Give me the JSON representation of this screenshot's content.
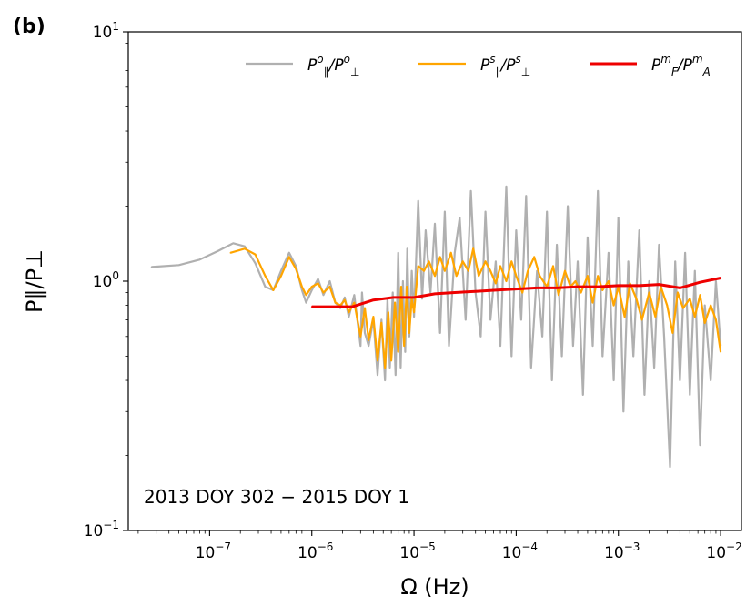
{
  "panel_label": "(b)",
  "chart_data": {
    "type": "line",
    "title": "",
    "xlabel": "Ω (Hz)",
    "ylabel": "P∥/P⊥",
    "x_scale": "log",
    "y_scale": "log",
    "xlim": [
      1.6e-08,
      0.016
    ],
    "ylim": [
      0.1,
      10
    ],
    "x_ticks": [
      {
        "value": 1e-07,
        "base": "10",
        "exp": "−7"
      },
      {
        "value": 1e-06,
        "base": "10",
        "exp": "−6"
      },
      {
        "value": 1e-05,
        "base": "10",
        "exp": "−5"
      },
      {
        "value": 0.0001,
        "base": "10",
        "exp": "−4"
      },
      {
        "value": 0.001,
        "base": "10",
        "exp": "−3"
      },
      {
        "value": 0.01,
        "base": "10",
        "exp": "−2"
      }
    ],
    "y_ticks": [
      {
        "value": 0.1,
        "base": "10",
        "exp": "−1"
      },
      {
        "value": 1,
        "base": "10",
        "exp": "0"
      },
      {
        "value": 10,
        "base": "10",
        "exp": "1"
      }
    ],
    "grid": false,
    "legend_position": "top",
    "annotation": "2013 DOY 302 − 2015 DOY 1",
    "series": [
      {
        "name": "P∥o/P⊥o",
        "legend": {
          "n1": "P",
          "s1": "∥",
          "p1": "o",
          "n2": "P",
          "s2": "⊥",
          "p2": "o"
        },
        "color": "#b0b0b0",
        "x": [
          2.7e-08,
          5e-08,
          8e-08,
          1.2e-07,
          1.7e-07,
          2.2e-07,
          2.8e-07,
          3.5e-07,
          4.2e-07,
          5e-07,
          6e-07,
          7e-07,
          8e-07,
          8.8e-07,
          1e-06,
          1.15e-06,
          1.3e-06,
          1.5e-06,
          1.7e-06,
          1.9e-06,
          2.1e-06,
          2.3e-06,
          2.6e-06,
          3e-06,
          3.1e-06,
          3.3e-06,
          3.6e-06,
          4e-06,
          4.4e-06,
          4.8e-06,
          5.2e-06,
          5.5e-06,
          5.8e-06,
          6.2e-06,
          6.6e-06,
          7e-06,
          7.4e-06,
          7.8e-06,
          8.2e-06,
          8.6e-06,
          9e-06,
          9.5e-06,
          1e-05,
          1.1e-05,
          1.2e-05,
          1.3e-05,
          1.45e-05,
          1.6e-05,
          1.8e-05,
          2e-05,
          2.2e-05,
          2.5e-05,
          2.8e-05,
          3.2e-05,
          3.6e-05,
          4e-05,
          4.5e-05,
          5e-05,
          5.6e-05,
          6.3e-05,
          7e-05,
          8e-05,
          9e-05,
          0.0001,
          0.000112,
          0.000125,
          0.00014,
          0.00016,
          0.00018,
          0.0002,
          0.000224,
          0.00025,
          0.00028,
          0.00032,
          0.00036,
          0.0004,
          0.00045,
          0.0005,
          0.00056,
          0.00063,
          0.0007,
          0.0008,
          0.0009,
          0.001,
          0.00112,
          0.00125,
          0.0014,
          0.0016,
          0.0018,
          0.002,
          0.00224,
          0.0025,
          0.0028,
          0.0032,
          0.0036,
          0.004,
          0.0045,
          0.005,
          0.0056,
          0.0063,
          0.007,
          0.008,
          0.009,
          0.01
        ],
        "y": [
          1.14,
          1.16,
          1.22,
          1.32,
          1.42,
          1.38,
          1.18,
          0.95,
          0.92,
          1.1,
          1.3,
          1.15,
          0.92,
          0.82,
          0.92,
          1.02,
          0.88,
          1.0,
          0.82,
          0.78,
          0.86,
          0.72,
          0.88,
          0.55,
          0.9,
          0.62,
          0.55,
          0.7,
          0.42,
          0.7,
          0.4,
          0.85,
          0.45,
          0.9,
          0.42,
          1.3,
          0.45,
          1.0,
          0.52,
          1.35,
          0.6,
          1.1,
          0.72,
          2.1,
          0.85,
          1.6,
          0.9,
          1.7,
          0.62,
          1.9,
          0.55,
          1.3,
          1.8,
          0.7,
          2.3,
          0.9,
          0.6,
          1.9,
          0.7,
          1.2,
          0.55,
          2.4,
          0.5,
          1.6,
          0.7,
          2.2,
          0.45,
          1.1,
          0.6,
          1.9,
          0.4,
          1.4,
          0.5,
          2.0,
          0.55,
          1.2,
          0.35,
          1.5,
          0.55,
          2.3,
          0.5,
          1.3,
          0.4,
          1.8,
          0.3,
          1.2,
          0.5,
          1.6,
          0.35,
          1.0,
          0.45,
          1.4,
          0.6,
          0.18,
          1.2,
          0.4,
          1.3,
          0.35,
          1.1,
          0.22,
          0.8,
          0.4,
          1.0,
          0.55
        ]
      },
      {
        "name": "P∥s/P⊥s",
        "legend": {
          "n1": "P",
          "s1": "∥",
          "p1": "s",
          "n2": "P",
          "s2": "⊥",
          "p2": "s"
        },
        "color": "#ffa500",
        "x": [
          1.6e-07,
          2.2e-07,
          2.8e-07,
          3.5e-07,
          4.2e-07,
          5e-07,
          6e-07,
          7e-07,
          8e-07,
          8.8e-07,
          1e-06,
          1.15e-06,
          1.3e-06,
          1.5e-06,
          1.7e-06,
          1.9e-06,
          2.1e-06,
          2.3e-06,
          2.6e-06,
          3e-06,
          3.3e-06,
          3.6e-06,
          4e-06,
          4.4e-06,
          4.8e-06,
          5.2e-06,
          5.6e-06,
          6e-06,
          6.5e-06,
          7e-06,
          7.5e-06,
          8e-06,
          8.5e-06,
          9e-06,
          9.5e-06,
          1e-05,
          1.1e-05,
          1.25e-05,
          1.4e-05,
          1.6e-05,
          1.8e-05,
          2e-05,
          2.3e-05,
          2.6e-05,
          3e-05,
          3.4e-05,
          3.8e-05,
          4.3e-05,
          5e-05,
          5.6e-05,
          6.3e-05,
          7e-05,
          8e-05,
          9e-05,
          0.0001,
          0.000115,
          0.00013,
          0.00015,
          0.00017,
          0.0002,
          0.00023,
          0.00026,
          0.0003,
          0.00034,
          0.00038,
          0.00043,
          0.0005,
          0.00056,
          0.00063,
          0.0007,
          0.0008,
          0.0009,
          0.001,
          0.00115,
          0.0013,
          0.0015,
          0.0017,
          0.002,
          0.0023,
          0.0026,
          0.003,
          0.0034,
          0.0038,
          0.0043,
          0.005,
          0.0056,
          0.0063,
          0.007,
          0.008,
          0.009,
          0.01
        ],
        "y": [
          1.3,
          1.35,
          1.28,
          1.05,
          0.92,
          1.05,
          1.25,
          1.12,
          0.95,
          0.88,
          0.95,
          0.98,
          0.9,
          0.95,
          0.82,
          0.8,
          0.84,
          0.75,
          0.82,
          0.6,
          0.78,
          0.58,
          0.72,
          0.48,
          0.68,
          0.45,
          0.75,
          0.48,
          0.82,
          0.52,
          0.95,
          0.55,
          0.95,
          0.62,
          0.85,
          0.75,
          1.15,
          1.1,
          1.2,
          1.05,
          1.25,
          1.1,
          1.3,
          1.05,
          1.2,
          1.1,
          1.35,
          1.05,
          1.2,
          1.1,
          0.98,
          1.15,
          1.0,
          1.2,
          1.05,
          0.9,
          1.1,
          1.25,
          1.05,
          0.95,
          1.15,
          0.88,
          1.1,
          0.95,
          1.0,
          0.9,
          1.05,
          0.82,
          1.05,
          0.92,
          1.0,
          0.8,
          0.95,
          0.72,
          0.98,
          0.85,
          0.7,
          0.9,
          0.72,
          0.95,
          0.8,
          0.62,
          0.9,
          0.78,
          0.85,
          0.72,
          0.88,
          0.68,
          0.8,
          0.7,
          0.52
        ]
      },
      {
        "name": "PFm/PAm",
        "legend": {
          "n1": "P",
          "s1": "F",
          "p1": "m",
          "n2": "P",
          "s2": "A",
          "p2": "m"
        },
        "color": "#ee0000",
        "x": [
          1e-06,
          1.5e-06,
          2.5e-06,
          4e-06,
          6.3e-06,
          1e-05,
          1.6e-05,
          2.5e-05,
          4e-05,
          6.3e-05,
          0.0001,
          0.00016,
          0.00025,
          0.0004,
          0.00063,
          0.001,
          0.0016,
          0.0025,
          0.004,
          0.0063,
          0.01
        ],
        "y": [
          0.79,
          0.79,
          0.79,
          0.84,
          0.86,
          0.86,
          0.89,
          0.9,
          0.91,
          0.92,
          0.93,
          0.94,
          0.94,
          0.95,
          0.95,
          0.96,
          0.96,
          0.97,
          0.94,
          0.99,
          1.03
        ]
      }
    ]
  }
}
